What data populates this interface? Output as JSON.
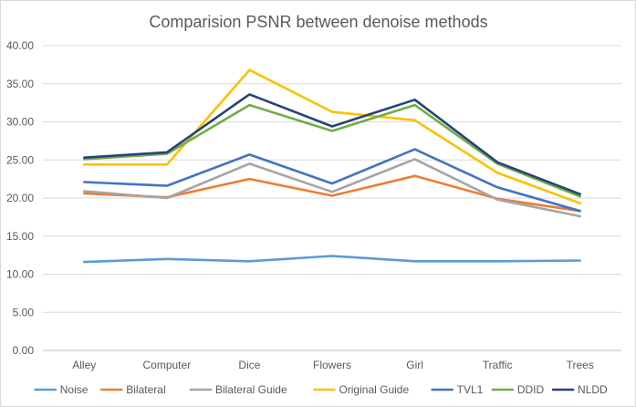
{
  "chart_data": {
    "type": "line",
    "title": "Comparision PSNR between denoise methods",
    "xlabel": "",
    "ylabel": "",
    "categories": [
      "Alley",
      "Computer",
      "Dice",
      "Flowers",
      "Girl",
      "Traffic",
      "Trees"
    ],
    "ylim": [
      0,
      40
    ],
    "yticks": [
      "0.00",
      "5.00",
      "10.00",
      "15.00",
      "20.00",
      "25.00",
      "30.00",
      "35.00",
      "40.00"
    ],
    "grid": true,
    "legend_position": "bottom",
    "series": [
      {
        "name": "Noise",
        "color": "#5B9BD5",
        "values": [
          11.6,
          12.0,
          11.7,
          12.4,
          11.7,
          11.7,
          11.8
        ]
      },
      {
        "name": "Bilateral",
        "color": "#ED7D31",
        "values": [
          20.6,
          20.1,
          22.5,
          20.3,
          22.9,
          19.9,
          18.3
        ]
      },
      {
        "name": "Bilateral Guide",
        "color": "#A5A5A5",
        "values": [
          20.9,
          20.0,
          24.5,
          20.8,
          25.1,
          19.8,
          17.6
        ]
      },
      {
        "name": "Original Guide",
        "color": "#FFC000",
        "values": [
          24.4,
          24.4,
          36.8,
          31.3,
          30.2,
          23.3,
          19.3
        ]
      },
      {
        "name": "TVL1",
        "color": "#4472C4",
        "values": [
          22.1,
          21.6,
          25.7,
          21.9,
          26.4,
          21.4,
          18.3
        ]
      },
      {
        "name": "DDID",
        "color": "#70AD47",
        "values": [
          25.1,
          25.8,
          32.2,
          28.8,
          32.2,
          24.5,
          20.2
        ]
      },
      {
        "name": "NLDD",
        "color": "#264478",
        "values": [
          25.3,
          26.0,
          33.6,
          29.4,
          32.9,
          24.7,
          20.5
        ]
      }
    ]
  }
}
